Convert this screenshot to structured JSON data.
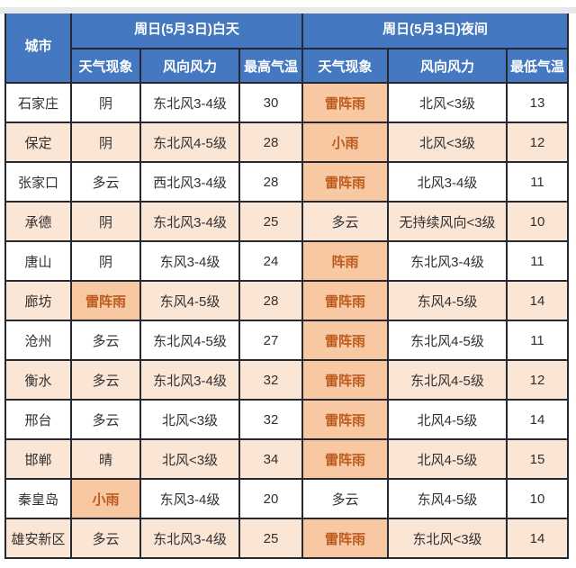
{
  "header": {
    "city_label": "城市",
    "day_group": "周日(5月3日)白天",
    "night_group": "周日(5月3日)夜间",
    "day_weather": "天气现象",
    "day_wind": "风向风力",
    "day_temp": "最高气温",
    "night_weather": "天气现象",
    "night_wind": "风向风力",
    "night_temp": "最低气温"
  },
  "colors": {
    "header_blue": "#4478C0",
    "border": "#262932",
    "row_peach": "#FBE5D5",
    "highlight_peach": "#F7C8A2",
    "accent_orange": "#BD5B1E",
    "text": "#303030"
  },
  "chart_data": {
    "type": "table",
    "title": "",
    "column_groups": [
      "城市",
      "周日(5月3日)白天",
      "周日(5月3日)夜间"
    ],
    "columns": [
      "城市",
      "天气现象",
      "风向风力",
      "最高气温",
      "天气现象",
      "风向风力",
      "最低气温"
    ],
    "rows": [
      {
        "city": "石家庄",
        "day_weather": "阴",
        "day_wind": "东北风3-4级",
        "day_temp": "30",
        "night_weather": "雷阵雨",
        "night_wind": "北风<3级",
        "night_temp": "13",
        "day_highlight": false,
        "night_highlight": true
      },
      {
        "city": "保定",
        "day_weather": "阴",
        "day_wind": "东北风4-5级",
        "day_temp": "28",
        "night_weather": "小雨",
        "night_wind": "北风<3级",
        "night_temp": "12",
        "day_highlight": false,
        "night_highlight": true
      },
      {
        "city": "张家口",
        "day_weather": "多云",
        "day_wind": "西北风3-4级",
        "day_temp": "28",
        "night_weather": "雷阵雨",
        "night_wind": "北风3-4级",
        "night_temp": "11",
        "day_highlight": false,
        "night_highlight": true
      },
      {
        "city": "承德",
        "day_weather": "阴",
        "day_wind": "东北风3-4级",
        "day_temp": "25",
        "night_weather": "多云",
        "night_wind": "无持续风向<3级",
        "night_temp": "10",
        "day_highlight": false,
        "night_highlight": false
      },
      {
        "city": "唐山",
        "day_weather": "阴",
        "day_wind": "东风3-4级",
        "day_temp": "24",
        "night_weather": "阵雨",
        "night_wind": "东北风3-4级",
        "night_temp": "11",
        "day_highlight": false,
        "night_highlight": true
      },
      {
        "city": "廊坊",
        "day_weather": "雷阵雨",
        "day_wind": "东风4-5级",
        "day_temp": "28",
        "night_weather": "雷阵雨",
        "night_wind": "东风4-5级",
        "night_temp": "14",
        "day_highlight": true,
        "night_highlight": true
      },
      {
        "city": "沧州",
        "day_weather": "多云",
        "day_wind": "东北风4-5级",
        "day_temp": "27",
        "night_weather": "雷阵雨",
        "night_wind": "东北风4-5级",
        "night_temp": "11",
        "day_highlight": false,
        "night_highlight": true
      },
      {
        "city": "衡水",
        "day_weather": "多云",
        "day_wind": "东北风3-4级",
        "day_temp": "32",
        "night_weather": "雷阵雨",
        "night_wind": "东北风4-5级",
        "night_temp": "12",
        "day_highlight": false,
        "night_highlight": true
      },
      {
        "city": "邢台",
        "day_weather": "多云",
        "day_wind": "北风<3级",
        "day_temp": "32",
        "night_weather": "雷阵雨",
        "night_wind": "北风4-5级",
        "night_temp": "14",
        "day_highlight": false,
        "night_highlight": true
      },
      {
        "city": "邯郸",
        "day_weather": "晴",
        "day_wind": "北风<3级",
        "day_temp": "34",
        "night_weather": "雷阵雨",
        "night_wind": "北风4-5级",
        "night_temp": "15",
        "day_highlight": false,
        "night_highlight": true
      },
      {
        "city": "秦皇岛",
        "day_weather": "小雨",
        "day_wind": "东风3-4级",
        "day_temp": "20",
        "night_weather": "多云",
        "night_wind": "东风4-5级",
        "night_temp": "10",
        "day_highlight": true,
        "night_highlight": false
      },
      {
        "city": "雄安新区",
        "day_weather": "多云",
        "day_wind": "东北风3-4级",
        "day_temp": "25",
        "night_weather": "雷阵雨",
        "night_wind": "东北风<3级",
        "night_temp": "14",
        "day_highlight": false,
        "night_highlight": true
      }
    ]
  }
}
